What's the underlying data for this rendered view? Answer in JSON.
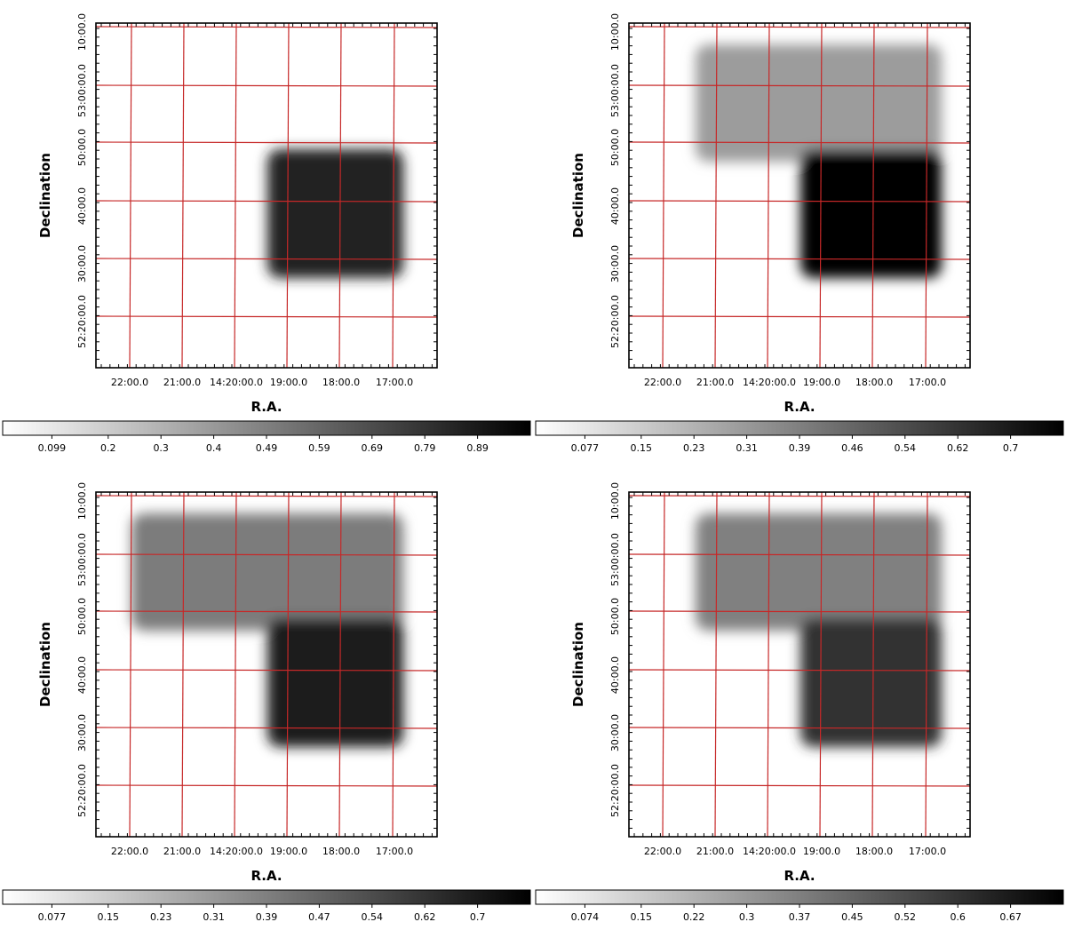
{
  "chart_data": [
    {
      "type": "heatmap",
      "xlabel": "R.A.",
      "ylabel": "Declination",
      "x_ticks": [
        "22:00.0",
        "21:00.0",
        "14:20:00.0",
        "19:00.0",
        "18:00.0",
        "17:00.0"
      ],
      "y_ticks": [
        "10:00.0",
        "53:00:00.0",
        "50:00.0",
        "40:00.0",
        "30:00.0",
        "52:20:00.0"
      ],
      "colorbar_ticks": [
        "0.099",
        "0.2",
        "0.3",
        "0.4",
        "0.49",
        "0.59",
        "0.69",
        "0.79",
        "0.89"
      ],
      "colorbar_range": [
        0,
        0.99
      ],
      "colormap": "grey-white-to-black",
      "grid_color": "#c62828",
      "coverage_regions": [
        {
          "ra_cols": [
            3,
            5
          ],
          "dec_rows": [
            2,
            4
          ],
          "value": 0.85
        }
      ]
    },
    {
      "type": "heatmap",
      "xlabel": "R.A.",
      "ylabel": "Declination",
      "x_ticks": [
        "22:00.0",
        "21:00.0",
        "14:20:00.0",
        "19:00.0",
        "18:00.0",
        "17:00.0"
      ],
      "y_ticks": [
        "10:00.0",
        "53:00:00.0",
        "50:00.0",
        "40:00.0",
        "30:00.0",
        "52:20:00.0"
      ],
      "colorbar_ticks": [
        "0.077",
        "0.15",
        "0.23",
        "0.31",
        "0.39",
        "0.46",
        "0.54",
        "0.62",
        "0.7"
      ],
      "colorbar_range": [
        0,
        0.77
      ],
      "colormap": "grey-white-to-black",
      "grid_color": "#c62828",
      "coverage_regions": [
        {
          "ra_cols": [
            1,
            6
          ],
          "dec_rows": [
            0,
            2
          ],
          "value": 0.3
        },
        {
          "ra_cols": [
            3,
            6
          ],
          "dec_rows": [
            2,
            4
          ],
          "value": 0.77
        }
      ]
    },
    {
      "type": "heatmap",
      "xlabel": "R.A.",
      "ylabel": "Declination",
      "x_ticks": [
        "22:00.0",
        "21:00.0",
        "14:20:00.0",
        "19:00.0",
        "18:00.0",
        "17:00.0"
      ],
      "y_ticks": [
        "10:00.0",
        "53:00:00.0",
        "50:00.0",
        "40:00.0",
        "30:00.0",
        "52:20:00.0"
      ],
      "colorbar_ticks": [
        "0.077",
        "0.15",
        "0.23",
        "0.31",
        "0.39",
        "0.47",
        "0.54",
        "0.62",
        "0.7"
      ],
      "colorbar_range": [
        0,
        0.77
      ],
      "colormap": "grey-white-to-black",
      "grid_color": "#c62828",
      "coverage_regions": [
        {
          "ra_cols": [
            0,
            5
          ],
          "dec_rows": [
            0,
            2
          ],
          "value": 0.4
        },
        {
          "ra_cols": [
            3,
            5
          ],
          "dec_rows": [
            2,
            4
          ],
          "value": 0.68
        }
      ]
    },
    {
      "type": "heatmap",
      "xlabel": "R.A.",
      "ylabel": "Declination",
      "x_ticks": [
        "22:00.0",
        "21:00.0",
        "14:20:00.0",
        "19:00.0",
        "18:00.0",
        "17:00.0"
      ],
      "y_ticks": [
        "10:00.0",
        "53:00:00.0",
        "50:00.0",
        "40:00.0",
        "30:00.0",
        "52:20:00.0"
      ],
      "colorbar_ticks": [
        "0.074",
        "0.15",
        "0.22",
        "0.3",
        "0.37",
        "0.45",
        "0.52",
        "0.6",
        "0.67"
      ],
      "colorbar_range": [
        0,
        0.74
      ],
      "colormap": "grey-white-to-black",
      "grid_color": "#c62828",
      "coverage_regions": [
        {
          "ra_cols": [
            1,
            6
          ],
          "dec_rows": [
            0,
            2
          ],
          "value": 0.37
        },
        {
          "ra_cols": [
            3,
            6
          ],
          "dec_rows": [
            2,
            4
          ],
          "value": 0.6
        }
      ]
    }
  ]
}
